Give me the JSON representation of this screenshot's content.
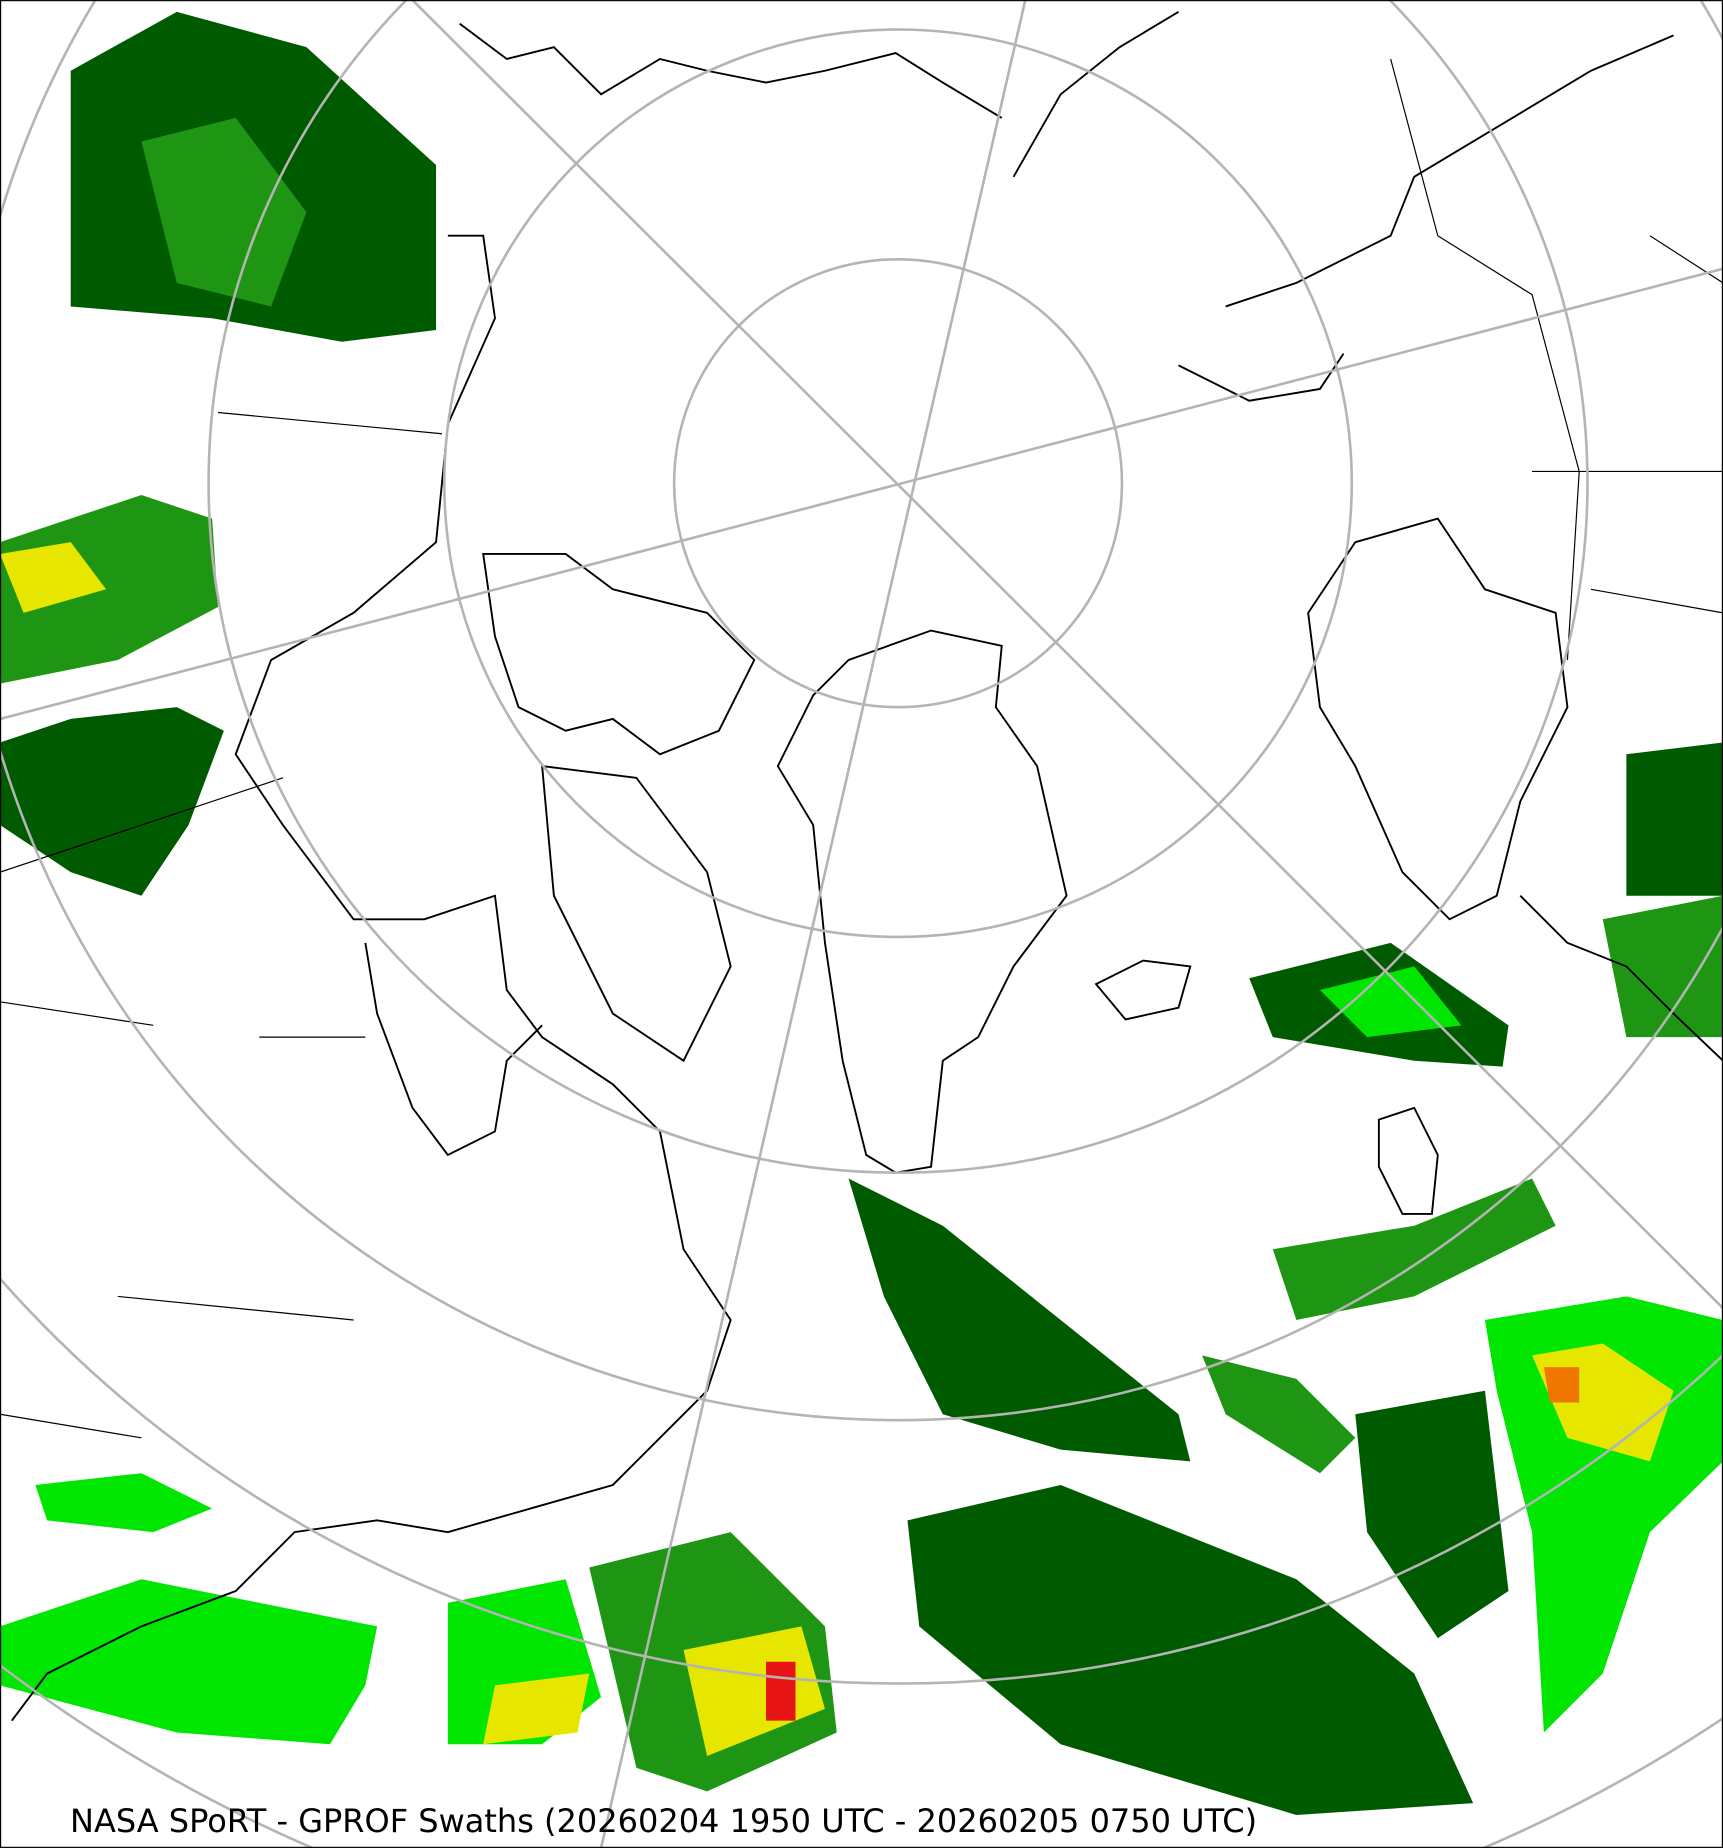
{
  "caption": "NASA SPoRT - GPROF Swaths (20260204 1950 UTC - 20260205 0750 UTC)",
  "map": {
    "projection": "north-polar-stereographic",
    "graticule_color": "#b4b4b4",
    "coastline_color": "#000000",
    "precip_colors": {
      "light": "#005a00",
      "moderate": "#1e9614",
      "heavy": "#00e600",
      "very_heavy": "#e6e600",
      "intense": "#f07800",
      "extreme": "#e61414"
    }
  }
}
